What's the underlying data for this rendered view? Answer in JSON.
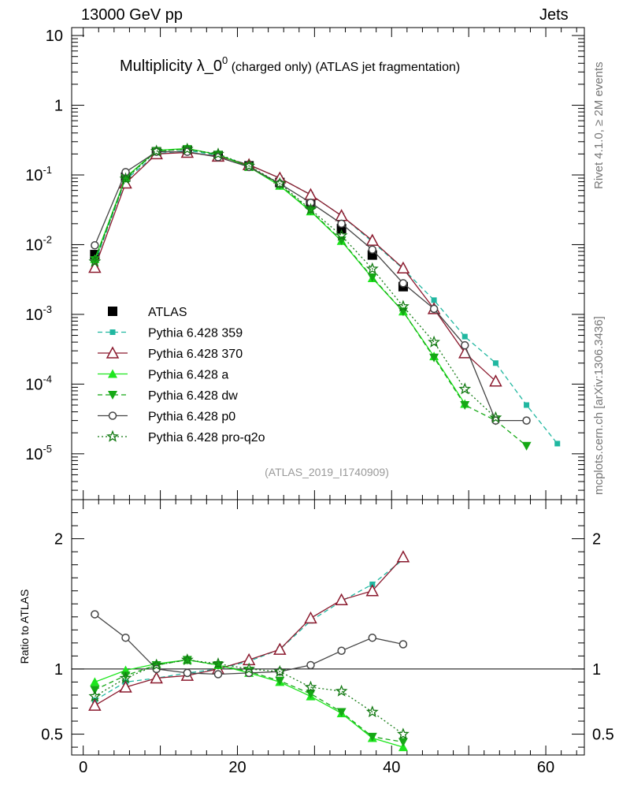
{
  "header": {
    "left": "13000 GeV pp",
    "right": "Jets"
  },
  "side_labels": {
    "rivet": "Rivet 4.1.0, ≥ 2M events",
    "mcplots": "mcplots.cern.ch [arXiv:1306.3436]"
  },
  "colors": {
    "atlas": "#000000",
    "p359": "#20b7a0",
    "p370": "#8b1a2e",
    "pa": "#1ee61e",
    "pdw": "#15a815",
    "pp0": "#444444",
    "pq2o": "#137a13"
  },
  "chart_data": {
    "type": "line",
    "title_main": "Multiplicity λ_0",
    "title_sup": "0",
    "title_suffix": " (charged only) (ATLAS jet fragmentation)",
    "analysis_id": "(ATLAS_2019_I1740909)",
    "xlim": [
      -1.5,
      65
    ],
    "xticks": [
      0,
      20,
      40,
      60
    ],
    "ylim_main": [
      2.2e-06,
      13
    ],
    "yscale_main": "log",
    "main_ytick_labels": [
      "10",
      "1",
      "10^-1",
      "10^-2",
      "10^-3",
      "10^-4",
      "10^-5"
    ],
    "ratio_ylabel": "Ratio to ATLAS",
    "ylim_ratio": [
      0.34,
      2.3
    ],
    "ratio_yticks": [
      0.5,
      1,
      2
    ],
    "ratio_ytick_labels": [
      "0.5",
      "1",
      "2"
    ],
    "legend_position": "bottom-left",
    "series": [
      {
        "name": "ATLAS",
        "key": "atlas",
        "marker": "square-filled",
        "line": "none",
        "x": [
          1.5,
          5.5,
          9.5,
          13.5,
          17.5,
          21.5,
          25.5,
          29.5,
          33.5,
          37.5,
          41.5
        ],
        "y": [
          0.0072,
          0.093,
          0.215,
          0.225,
          0.19,
          0.135,
          0.078,
          0.038,
          0.017,
          0.0071,
          0.0025
        ]
      },
      {
        "name": "Pythia 6.428 359",
        "key": "p359",
        "marker": "square-small",
        "line": "dashed",
        "x": [
          1.5,
          5.5,
          9.5,
          13.5,
          17.5,
          21.5,
          25.5,
          29.5,
          33.5,
          37.5,
          41.5,
          45.5,
          49.5,
          53.5,
          57.5,
          61.5
        ],
        "y": [
          0.0055,
          0.085,
          0.2,
          0.225,
          0.19,
          0.14,
          0.09,
          0.052,
          0.026,
          0.011,
          0.0045,
          0.0016,
          0.00048,
          0.0002,
          5e-05,
          1.4e-05
        ],
        "ratio_x": [
          1.5,
          5.5,
          9.5,
          13.5,
          17.5,
          21.5,
          25.5,
          29.5,
          33.5,
          37.5,
          41.5
        ],
        "ratio": [
          0.76,
          0.9,
          0.93,
          0.97,
          1.0,
          1.06,
          1.15,
          1.37,
          1.52,
          1.65,
          1.84
        ]
      },
      {
        "name": "Pythia 6.428 370",
        "key": "p370",
        "marker": "triangle-up-open",
        "line": "solid",
        "x": [
          1.5,
          5.5,
          9.5,
          13.5,
          17.5,
          21.5,
          25.5,
          29.5,
          33.5,
          37.5,
          41.5,
          45.5,
          49.5,
          53.5
        ],
        "y": [
          0.0047,
          0.076,
          0.2,
          0.21,
          0.185,
          0.14,
          0.09,
          0.052,
          0.026,
          0.0115,
          0.0046,
          0.0012,
          0.00028,
          0.00011
        ],
        "ratio_x": [
          1.5,
          5.5,
          9.5,
          13.5,
          17.5,
          21.5,
          25.5,
          29.5,
          33.5,
          37.5,
          41.5
        ],
        "ratio": [
          0.72,
          0.86,
          0.93,
          0.95,
          1.0,
          1.07,
          1.15,
          1.39,
          1.53,
          1.6,
          1.86
        ]
      },
      {
        "name": "Pythia 6.428 a",
        "key": "pa",
        "marker": "triangle-up-filled",
        "line": "solid",
        "x": [
          1.5,
          5.5,
          9.5,
          13.5,
          17.5,
          21.5,
          25.5,
          29.5,
          33.5,
          37.5,
          41.5,
          45.5,
          49.5
        ],
        "y": [
          0.0062,
          0.092,
          0.225,
          0.24,
          0.195,
          0.13,
          0.07,
          0.03,
          0.0113,
          0.0033,
          0.0011,
          0.00025,
          5.2e-05
        ],
        "ratio_x": [
          1.5,
          5.5,
          9.5,
          13.5,
          17.5,
          21.5,
          25.5,
          29.5,
          33.5,
          37.5,
          41.5
        ],
        "ratio": [
          0.9,
          0.99,
          1.04,
          1.07,
          1.03,
          0.97,
          0.9,
          0.79,
          0.66,
          0.47,
          0.4
        ]
      },
      {
        "name": "Pythia 6.428 dw",
        "key": "pdw",
        "marker": "triangle-down-filled",
        "line": "dashed",
        "x": [
          1.5,
          5.5,
          9.5,
          13.5,
          17.5,
          21.5,
          25.5,
          29.5,
          33.5,
          37.5,
          41.5,
          45.5,
          49.5,
          53.5,
          57.5
        ],
        "y": [
          0.006,
          0.09,
          0.22,
          0.235,
          0.195,
          0.132,
          0.072,
          0.031,
          0.0115,
          0.0034,
          0.0011,
          0.00024,
          5e-05,
          3e-05,
          1.3e-05
        ],
        "ratio_x": [
          1.5,
          5.5,
          9.5,
          13.5,
          17.5,
          21.5,
          25.5,
          29.5,
          33.5,
          37.5,
          41.5
        ],
        "ratio": [
          0.84,
          0.95,
          1.03,
          1.07,
          1.03,
          0.98,
          0.91,
          0.81,
          0.67,
          0.48,
          0.44
        ]
      },
      {
        "name": "Pythia 6.428 p0",
        "key": "pp0",
        "marker": "circle-open",
        "line": "solid",
        "x": [
          1.5,
          5.5,
          9.5,
          13.5,
          17.5,
          21.5,
          25.5,
          29.5,
          33.5,
          37.5,
          41.5,
          45.5,
          49.5,
          53.5,
          57.5
        ],
        "y": [
          0.0098,
          0.11,
          0.215,
          0.215,
          0.18,
          0.13,
          0.075,
          0.04,
          0.02,
          0.0085,
          0.0028,
          0.0012,
          0.00036,
          3e-05,
          3e-05
        ],
        "ratio_x": [
          1.5,
          5.5,
          9.5,
          13.5,
          17.5,
          21.5,
          25.5,
          29.5,
          33.5,
          37.5,
          41.5
        ],
        "ratio": [
          1.42,
          1.24,
          1.0,
          0.97,
          0.96,
          0.97,
          0.98,
          1.03,
          1.14,
          1.24,
          1.19
        ]
      },
      {
        "name": "Pythia 6.428 pro-q2o",
        "key": "pq2o",
        "marker": "star-open",
        "line": "dotted",
        "x": [
          1.5,
          5.5,
          9.5,
          13.5,
          17.5,
          21.5,
          25.5,
          29.5,
          33.5,
          37.5,
          41.5,
          45.5,
          49.5,
          53.5
        ],
        "y": [
          0.0057,
          0.088,
          0.22,
          0.235,
          0.2,
          0.135,
          0.075,
          0.032,
          0.0135,
          0.0045,
          0.0013,
          0.0004,
          8.5e-05,
          3.3e-05
        ],
        "ratio_x": [
          1.5,
          5.5,
          9.5,
          13.5,
          17.5,
          21.5,
          25.5,
          29.5,
          33.5,
          37.5,
          41.5
        ],
        "ratio": [
          0.79,
          0.93,
          1.03,
          1.07,
          1.04,
          1.0,
          0.98,
          0.86,
          0.83,
          0.67,
          0.5
        ]
      }
    ]
  }
}
